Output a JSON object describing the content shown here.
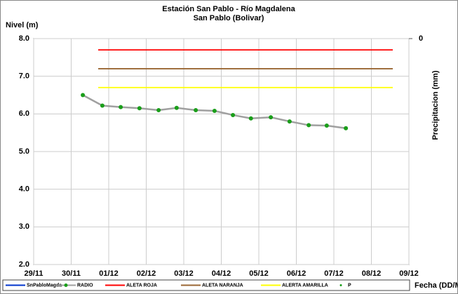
{
  "chart_data": {
    "type": "line",
    "title": "Estación San Pablo - Río Magdalena",
    "subtitle": "San Pablo (Bolivar)",
    "y_label": "Nivel (m)",
    "y2_label": "Precipitacion (mm)",
    "x_label": "Fecha (DD/MM)",
    "xlim": [
      0,
      10
    ],
    "xticks": [
      {
        "value": 0,
        "label": "29/11"
      },
      {
        "value": 1,
        "label": "30/11"
      },
      {
        "value": 2,
        "label": "01/12"
      },
      {
        "value": 3,
        "label": "02/12"
      },
      {
        "value": 4,
        "label": "03/12"
      },
      {
        "value": 5,
        "label": "04/12"
      },
      {
        "value": 6,
        "label": "05/12"
      },
      {
        "value": 7,
        "label": "06/12"
      },
      {
        "value": 8,
        "label": "07/12"
      },
      {
        "value": 9,
        "label": "08/12"
      },
      {
        "value": 10,
        "label": "09/12"
      }
    ],
    "ylim": [
      2,
      8
    ],
    "yticks": [
      {
        "value": 2,
        "label": "2.0"
      },
      {
        "value": 3,
        "label": "3.0"
      },
      {
        "value": 4,
        "label": "4.0"
      },
      {
        "value": 5,
        "label": "5.0"
      },
      {
        "value": 6,
        "label": "6.0"
      },
      {
        "value": 7,
        "label": "7.0"
      },
      {
        "value": 8,
        "label": "8.0"
      }
    ],
    "y2ticks": [
      0
    ],
    "grid": true,
    "legend": "bottom",
    "series": [
      {
        "name": "SnPabloMagda",
        "color": "#0033cc",
        "x": [],
        "values": []
      },
      {
        "name": "RADIO",
        "color": "#a0a0a0",
        "marker_color": "#1a9e1a",
        "x": [
          1.31,
          1.83,
          2.32,
          2.82,
          3.33,
          3.81,
          4.32,
          4.82,
          5.31,
          5.79,
          6.32,
          6.82,
          7.33,
          7.81,
          8.32
        ],
        "values": [
          6.5,
          6.22,
          6.18,
          6.15,
          6.1,
          6.16,
          6.1,
          6.08,
          5.97,
          5.88,
          5.91,
          5.8,
          5.7,
          5.69,
          5.62
        ]
      },
      {
        "name": "ALETA ROJA",
        "color": "#ff0000",
        "x": [
          1.72,
          9.57
        ],
        "values": [
          7.7,
          7.7
        ]
      },
      {
        "name": "ALETA NARANJA",
        "color": "#996633",
        "x": [
          1.72,
          9.57
        ],
        "values": [
          7.2,
          7.2
        ]
      },
      {
        "name": "ALERTA AMARILLA",
        "color": "#ffff00",
        "x": [
          1.72,
          9.57
        ],
        "values": [
          6.7,
          6.7
        ]
      },
      {
        "name": "P",
        "color": "#1a9e1a",
        "x": [],
        "values": [],
        "marker_only": true
      }
    ]
  }
}
